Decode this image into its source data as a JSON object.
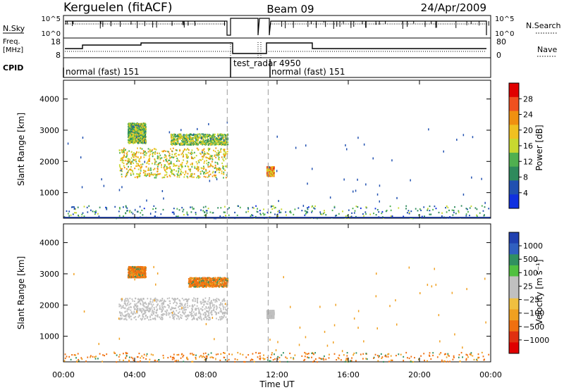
{
  "header": {
    "station": "Kerguelen (fitACF)",
    "beam": "Beam 09",
    "date": "24/Apr/2009"
  },
  "top_panels": {
    "nsky_label": "N.Sky",
    "nsky_ticks": [
      "10^5",
      "10^0"
    ],
    "nsearch_label": "N.Search",
    "nsearch_ticks": [
      "10^5",
      "10^0"
    ],
    "freq_label_line1": "Freq.",
    "freq_label_line2": "[MHz]",
    "freq_ticks": [
      "18",
      "8"
    ],
    "nave_label": "Nave",
    "nave_ticks": [
      "80",
      "0"
    ],
    "cpid_label": "CPID",
    "cpid_segments": [
      {
        "label": "normal (fast) 151",
        "start_hour": 0,
        "end_hour": 9.2
      },
      {
        "label": "test_radar 4950",
        "start_hour": 9.2,
        "end_hour": 11.5
      },
      {
        "label": "normal (fast) 151",
        "start_hour": 11.5,
        "end_hour": 24
      }
    ]
  },
  "time_axis": {
    "label": "Time UT",
    "ticks": [
      "00:00",
      "04:00",
      "08:00",
      "12:00",
      "16:00",
      "20:00",
      "00:00"
    ],
    "tick_hours": [
      0,
      4,
      8,
      12,
      16,
      20,
      24
    ],
    "dashed_lines_hours": [
      9.2,
      11.5
    ]
  },
  "power_colorbar": {
    "label": "Power [dB]",
    "ticks": [
      "28",
      "24",
      "20",
      "16",
      "12",
      "8",
      "4"
    ],
    "colors": [
      "#e00000",
      "#f05020",
      "#f09010",
      "#f0c020",
      "#c8d830",
      "#50b050",
      "#2e8a5c",
      "#2050b0",
      "#1030e0"
    ]
  },
  "velocity_colorbar": {
    "label": "Velocity [m s⁻¹]",
    "ticks": [
      "1000",
      "500",
      "100",
      "25",
      "−25",
      "−100",
      "−500",
      "−1000"
    ],
    "colors": [
      "#2040b0",
      "#3060c0",
      "#309060",
      "#50c040",
      "#c0c0c0",
      "#c0c0c0",
      "#f0c040",
      "#f0a020",
      "#f07010",
      "#e03010",
      "#e00000"
    ]
  },
  "chart_data": [
    {
      "type": "heatmap",
      "title": "Power",
      "ylabel": "Slant Range [km]",
      "xlabel": "Time UT",
      "xlim_hours": [
        0,
        24
      ],
      "ylim": [
        180,
        4600
      ],
      "yticks": [
        1000,
        2000,
        3000,
        4000
      ],
      "blobs": [
        {
          "x0": 3.1,
          "x1": 9.2,
          "y0": 1500,
          "y1": 2450,
          "value_db": 16
        },
        {
          "x0": 3.6,
          "x1": 4.6,
          "y0": 2600,
          "y1": 3250,
          "value_db": 12
        },
        {
          "x0": 6.0,
          "x1": 9.2,
          "y0": 2550,
          "y1": 2900,
          "value_db": 12
        },
        {
          "x0": 11.4,
          "x1": 11.8,
          "y0": 1550,
          "y1": 1850,
          "value_db": 20
        },
        {
          "x0": 0,
          "x1": 24,
          "y0": 200,
          "y1": 600,
          "value_db": 8
        }
      ]
    },
    {
      "type": "heatmap",
      "title": "Velocity",
      "ylabel": "Slant Range [km]",
      "xlabel": "Time UT",
      "xlim_hours": [
        0,
        24
      ],
      "ylim": [
        180,
        4600
      ],
      "yticks": [
        1000,
        2000,
        3000,
        4000
      ],
      "blobs": [
        {
          "x0": 3.1,
          "x1": 9.2,
          "y0": 1550,
          "y1": 2250,
          "value_ms": 0
        },
        {
          "x0": 3.6,
          "x1": 4.6,
          "y0": 2900,
          "y1": 3250,
          "value_ms": -100
        },
        {
          "x0": 7.0,
          "x1": 9.2,
          "y0": 2600,
          "y1": 2900,
          "value_ms": -100
        },
        {
          "x0": 11.4,
          "x1": 11.8,
          "y0": 1600,
          "y1": 1850,
          "value_ms": 0
        },
        {
          "x0": 0,
          "x1": 24,
          "y0": 200,
          "y1": 500,
          "value_ms": -100
        }
      ]
    }
  ]
}
